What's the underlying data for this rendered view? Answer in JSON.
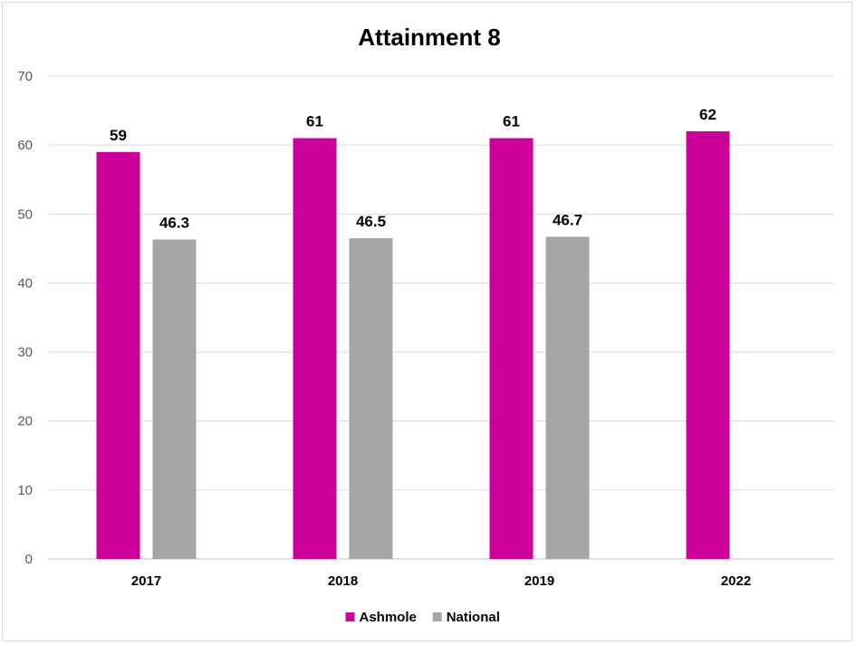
{
  "chart_data": {
    "type": "bar",
    "title": "Attainment 8",
    "xlabel": "",
    "ylabel": "",
    "categories": [
      "2017",
      "2018",
      "2019",
      "2022"
    ],
    "series": [
      {
        "name": "Ashmole",
        "color": "#cc0099",
        "values": [
          59,
          61,
          61,
          62
        ]
      },
      {
        "name": "National",
        "color": "#a6a6a6",
        "values": [
          46.3,
          46.5,
          46.7,
          null
        ]
      }
    ],
    "ylim": [
      0,
      70
    ],
    "yticks": [
      0,
      10,
      20,
      30,
      40,
      50,
      60,
      70
    ],
    "grid": true,
    "legend": "bottom-center",
    "data_labels": true
  }
}
